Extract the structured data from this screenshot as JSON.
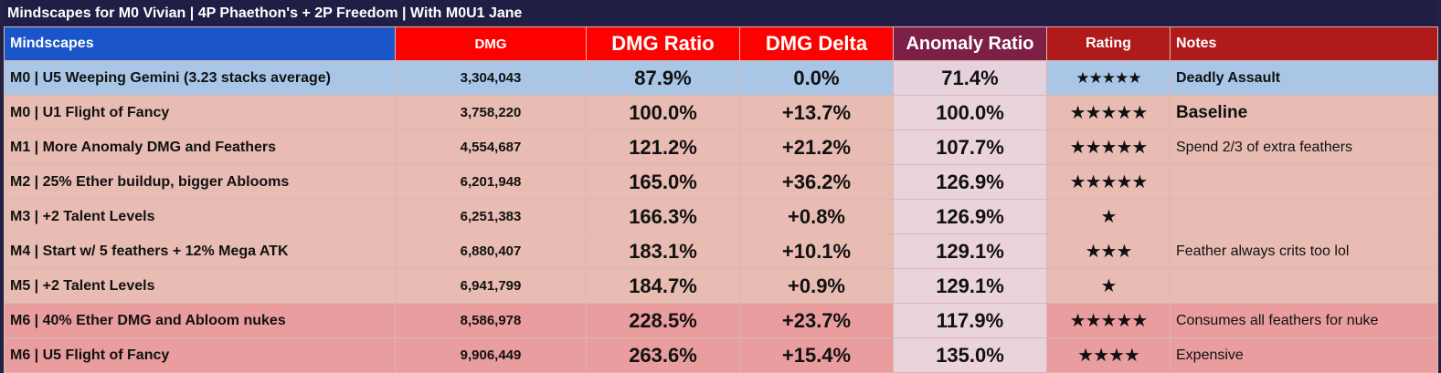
{
  "title": "Mindscapes for M0 Vivian | 4P Phaethon's + 2P Freedom | With M0U1 Jane",
  "headers": {
    "mindscapes": "Mindscapes",
    "dmg": "DMG",
    "dmg_ratio": "DMG Ratio",
    "dmg_delta": "DMG Delta",
    "anomaly_ratio": "Anomaly Ratio",
    "rating": "Rating",
    "notes": "Notes"
  },
  "colors": {
    "header_blue": "#1a56c9",
    "header_red": "#ff0000",
    "header_purple": "#7e1f48",
    "header_dark_red": "#b01a1a",
    "row_blue": "#a9c6e6",
    "row_peach": "#e8bcb2",
    "row_pink": "#e99d9e"
  },
  "rows": [
    {
      "name": "M0 | U5 Weeping Gemini (3.23 stacks average)",
      "dmg": "3,304,043",
      "ratio": "87.9%",
      "delta": "0.0%",
      "anomaly": "71.4%",
      "rating": "★★★★★",
      "notes": "Deadly Assault"
    },
    {
      "name": "M0 | U1 Flight of Fancy",
      "dmg": "3,758,220",
      "ratio": "100.0%",
      "delta": "+13.7%",
      "anomaly": "100.0%",
      "rating": "★★★★★",
      "notes": "Baseline"
    },
    {
      "name": "M1 | More Anomaly DMG and Feathers",
      "dmg": "4,554,687",
      "ratio": "121.2%",
      "delta": "+21.2%",
      "anomaly": "107.7%",
      "rating": "★★★★★",
      "notes": "Spend 2/3 of extra feathers"
    },
    {
      "name": "M2 | 25% Ether buildup, bigger Ablooms",
      "dmg": "6,201,948",
      "ratio": "165.0%",
      "delta": "+36.2%",
      "anomaly": "126.9%",
      "rating": "★★★★★",
      "notes": ""
    },
    {
      "name": "M3 | +2 Talent Levels",
      "dmg": "6,251,383",
      "ratio": "166.3%",
      "delta": "+0.8%",
      "anomaly": "126.9%",
      "rating": "★",
      "notes": ""
    },
    {
      "name": "M4 | Start w/ 5 feathers + 12% Mega ATK",
      "dmg": "6,880,407",
      "ratio": "183.1%",
      "delta": "+10.1%",
      "anomaly": "129.1%",
      "rating": "★★★",
      "notes": "Feather always crits too lol"
    },
    {
      "name": "M5 | +2 Talent Levels",
      "dmg": "6,941,799",
      "ratio": "184.7%",
      "delta": "+0.9%",
      "anomaly": "129.1%",
      "rating": "★",
      "notes": ""
    },
    {
      "name": "M6 | 40% Ether DMG and Abloom nukes",
      "dmg": "8,586,978",
      "ratio": "228.5%",
      "delta": "+23.7%",
      "anomaly": "117.9%",
      "rating": "★★★★★",
      "notes": "Consumes all feathers for nuke"
    },
    {
      "name": "M6 | U5 Flight of Fancy",
      "dmg": "9,906,449",
      "ratio": "263.6%",
      "delta": "+15.4%",
      "anomaly": "135.0%",
      "rating": "★★★★",
      "notes": "Expensive"
    }
  ]
}
